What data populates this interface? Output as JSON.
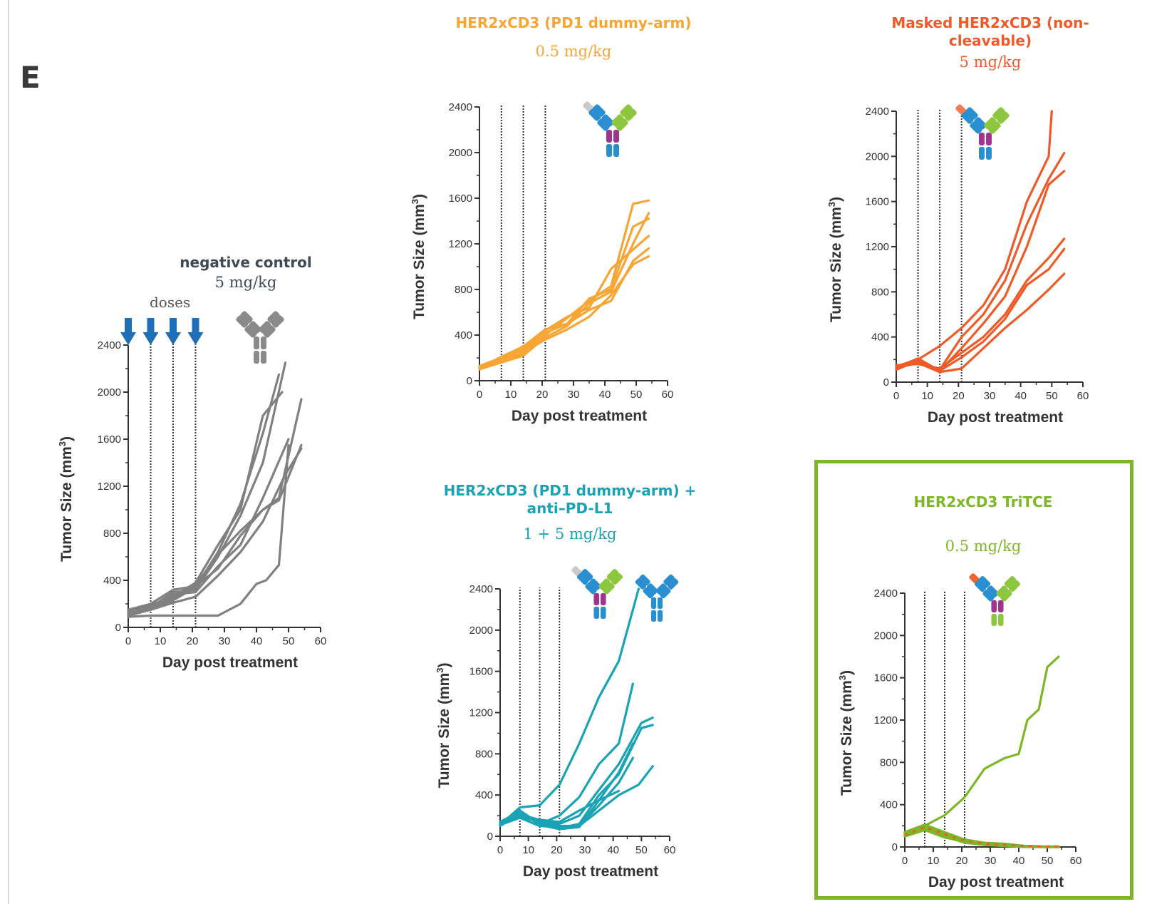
{
  "panel_letter": "E",
  "colors": {
    "grey": "#808080",
    "orange_light": "#f7a535",
    "orange_red": "#ee5a28",
    "teal": "#1aa3b5",
    "green": "#7db728",
    "dose_arrow": "#1f6fb8",
    "axis": "#333333"
  },
  "panels": {
    "negative": {
      "title": "negative control",
      "dose": "5 mg/kg",
      "doses_label": "doses"
    },
    "her2_pd1": {
      "title": "HER2xCD3 (PD1 dummy-arm)",
      "dose": "0.5 mg/kg"
    },
    "masked": {
      "title": "Masked HER2xCD3 (non-cleavable)",
      "dose": "5 mg/kg"
    },
    "combo": {
      "title": "HER2xCD3 (PD1 dummy-arm) + anti–PD-L1",
      "dose": "1 + 5 mg/kg"
    },
    "tritce": {
      "title": "HER2xCD3 TriTCE",
      "dose": "0.5 mg/kg"
    }
  },
  "icons": [
    "antibody-icon",
    "masked-bispecific-icon",
    "bispecific-icon",
    "trispecific-icon"
  ],
  "chart_data": [
    {
      "id": "negative",
      "type": "line",
      "title": "negative control",
      "subtitle": "5 mg/kg",
      "xlabel": "Day post treatment",
      "ylabel": "Tumor Size (mm3)",
      "xlim": [
        0,
        60
      ],
      "ylim": [
        0,
        2400
      ],
      "xticks": [
        0,
        10,
        20,
        30,
        40,
        50,
        60
      ],
      "yticks": [
        0,
        400,
        800,
        1200,
        1600,
        2000,
        2400
      ],
      "dose_days": [
        0,
        7,
        14,
        21
      ],
      "color": "#808080",
      "series": [
        {
          "x": [
            0,
            7,
            14,
            21,
            28,
            35,
            42,
            47
          ],
          "y": [
            120,
            160,
            230,
            340,
            640,
            1050,
            1650,
            2150
          ]
        },
        {
          "x": [
            0,
            7,
            14,
            21,
            28,
            35,
            42,
            49
          ],
          "y": [
            130,
            170,
            300,
            320,
            600,
            950,
            1400,
            2250
          ]
        },
        {
          "x": [
            0,
            7,
            14,
            21,
            28,
            35,
            42,
            48
          ],
          "y": [
            110,
            190,
            260,
            380,
            700,
            1000,
            1800,
            2000
          ]
        },
        {
          "x": [
            0,
            7,
            14,
            21,
            28,
            35,
            42,
            50
          ],
          "y": [
            140,
            180,
            280,
            300,
            520,
            700,
            1100,
            1600
          ]
        },
        {
          "x": [
            0,
            7,
            14,
            21,
            28,
            35,
            42,
            49,
            54
          ],
          "y": [
            100,
            150,
            210,
            260,
            440,
            640,
            900,
            1300,
            1520
          ]
        },
        {
          "x": [
            0,
            7,
            14,
            21,
            28,
            35,
            42,
            47,
            54
          ],
          "y": [
            150,
            200,
            320,
            350,
            500,
            780,
            1000,
            1080,
            1550
          ]
        },
        {
          "x": [
            0,
            7,
            14,
            21,
            28,
            35,
            42,
            47,
            54
          ],
          "y": [
            120,
            170,
            250,
            360,
            620,
            820,
            1000,
            1100,
            1940
          ]
        },
        {
          "x": [
            0,
            7,
            14,
            21,
            28,
            35,
            40,
            43,
            47,
            50
          ],
          "y": [
            90,
            100,
            100,
            100,
            100,
            200,
            370,
            400,
            530,
            1550
          ]
        }
      ]
    },
    {
      "id": "her2_pd1",
      "type": "line",
      "title": "HER2xCD3 (PD1 dummy-arm)",
      "subtitle": "0.5 mg/kg",
      "xlabel": "Day post treatment",
      "ylabel": "Tumor Size (mm3)",
      "xlim": [
        0,
        60
      ],
      "ylim": [
        0,
        2400
      ],
      "xticks": [
        0,
        10,
        20,
        30,
        40,
        50,
        60
      ],
      "yticks": [
        0,
        400,
        800,
        1200,
        1600,
        2000,
        2400
      ],
      "dose_days": [
        7,
        14,
        21
      ],
      "color": "#f7a535",
      "series": [
        {
          "x": [
            0,
            7,
            14,
            21,
            28,
            35,
            42,
            49,
            54
          ],
          "y": [
            110,
            170,
            240,
            400,
            550,
            700,
            830,
            1550,
            1580
          ]
        },
        {
          "x": [
            0,
            7,
            14,
            21,
            28,
            35,
            42,
            49,
            54
          ],
          "y": [
            120,
            190,
            260,
            420,
            500,
            720,
            800,
            1350,
            1420
          ]
        },
        {
          "x": [
            0,
            7,
            14,
            21,
            28,
            35,
            42,
            49,
            54
          ],
          "y": [
            100,
            160,
            220,
            380,
            480,
            680,
            780,
            1200,
            1470
          ]
        },
        {
          "x": [
            0,
            7,
            14,
            21,
            28,
            35,
            42,
            49,
            54
          ],
          "y": [
            130,
            200,
            280,
            440,
            560,
            640,
            980,
            1150,
            1270
          ]
        },
        {
          "x": [
            0,
            7,
            14,
            21,
            28,
            35,
            42,
            49,
            54
          ],
          "y": [
            115,
            210,
            300,
            450,
            500,
            620,
            700,
            1050,
            1160
          ]
        },
        {
          "x": [
            0,
            7,
            14,
            21,
            28,
            35,
            42,
            49,
            54
          ],
          "y": [
            105,
            180,
            250,
            360,
            450,
            560,
            750,
            1020,
            1090
          ]
        }
      ]
    },
    {
      "id": "masked",
      "type": "line",
      "title": "Masked HER2xCD3 (non-cleavable)",
      "subtitle": "5 mg/kg",
      "xlabel": "Day post treatment",
      "ylabel": "Tumor Size (mm3)",
      "xlim": [
        0,
        60
      ],
      "ylim": [
        0,
        2400
      ],
      "xticks": [
        0,
        10,
        20,
        30,
        40,
        50,
        60
      ],
      "yticks": [
        0,
        400,
        800,
        1200,
        1600,
        2000,
        2400
      ],
      "dose_days": [
        7,
        14,
        21
      ],
      "color": "#ee5a28",
      "series": [
        {
          "x": [
            0,
            7,
            14,
            21,
            28,
            35,
            42,
            49,
            50
          ],
          "y": [
            140,
            200,
            320,
            480,
            680,
            1000,
            1600,
            2000,
            2400
          ]
        },
        {
          "x": [
            0,
            7,
            14,
            21,
            28,
            35,
            42,
            49,
            54
          ],
          "y": [
            120,
            180,
            110,
            400,
            600,
            900,
            1400,
            1800,
            2030
          ]
        },
        {
          "x": [
            0,
            7,
            14,
            21,
            28,
            35,
            42,
            49,
            54
          ],
          "y": [
            130,
            210,
            100,
            300,
            520,
            760,
            1200,
            1750,
            1870
          ]
        },
        {
          "x": [
            0,
            7,
            14,
            21,
            28,
            35,
            42,
            49,
            54
          ],
          "y": [
            150,
            160,
            120,
            260,
            400,
            600,
            900,
            1100,
            1270
          ]
        },
        {
          "x": [
            0,
            7,
            14,
            21,
            28,
            35,
            42,
            49,
            54
          ],
          "y": [
            110,
            190,
            100,
            220,
            360,
            560,
            860,
            1000,
            1180
          ]
        },
        {
          "x": [
            0,
            7,
            14,
            21,
            28,
            35,
            42,
            49,
            54
          ],
          "y": [
            125,
            170,
            90,
            120,
            300,
            480,
            640,
            820,
            960
          ]
        }
      ]
    },
    {
      "id": "combo",
      "type": "line",
      "title": "HER2xCD3 (PD1 dummy-arm) + anti–PD-L1",
      "subtitle": "1 + 5 mg/kg",
      "xlabel": "Day post treatment",
      "ylabel": "Tumor Size (mm3)",
      "xlim": [
        0,
        60
      ],
      "ylim": [
        0,
        2400
      ],
      "xticks": [
        0,
        10,
        20,
        30,
        40,
        50,
        60
      ],
      "yticks": [
        0,
        400,
        800,
        1200,
        1600,
        2000,
        2400
      ],
      "dose_days": [
        7,
        14,
        21
      ],
      "color": "#1aa3b5",
      "series": [
        {
          "x": [
            0,
            7,
            14,
            21,
            28,
            35,
            42,
            49
          ],
          "y": [
            110,
            280,
            300,
            500,
            900,
            1350,
            1700,
            2400
          ]
        },
        {
          "x": [
            0,
            7,
            14,
            21,
            28,
            35,
            42,
            47
          ],
          "y": [
            130,
            250,
            120,
            200,
            380,
            700,
            900,
            1480
          ]
        },
        {
          "x": [
            0,
            7,
            14,
            21,
            28,
            35,
            42,
            50,
            54
          ],
          "y": [
            120,
            200,
            150,
            120,
            200,
            450,
            700,
            1100,
            1150
          ]
        },
        {
          "x": [
            0,
            7,
            14,
            21,
            28,
            35,
            42,
            50,
            54
          ],
          "y": [
            100,
            220,
            130,
            80,
            120,
            400,
            600,
            1050,
            1080
          ]
        },
        {
          "x": [
            0,
            7,
            14,
            21,
            28,
            35,
            42,
            47
          ],
          "y": [
            140,
            240,
            110,
            70,
            90,
            350,
            620,
            900
          ]
        },
        {
          "x": [
            0,
            7,
            14,
            21,
            28,
            35,
            42,
            47
          ],
          "y": [
            110,
            180,
            100,
            90,
            100,
            300,
            520,
            760
          ]
        },
        {
          "x": [
            0,
            7,
            14,
            21,
            28,
            35,
            42
          ],
          "y": [
            125,
            210,
            160,
            140,
            250,
            350,
            440
          ]
        },
        {
          "x": [
            0,
            7,
            14,
            21,
            28,
            35,
            42,
            49,
            54
          ],
          "y": [
            115,
            190,
            140,
            100,
            100,
            250,
            400,
            500,
            680
          ]
        }
      ]
    },
    {
      "id": "tritce",
      "type": "line",
      "title": "HER2xCD3 TriTCE",
      "subtitle": "0.5 mg/kg",
      "xlabel": "Day post treatment",
      "ylabel": "Tumor Size (mm3)",
      "xlim": [
        0,
        60
      ],
      "ylim": [
        0,
        2400
      ],
      "xticks": [
        0,
        10,
        20,
        30,
        40,
        50,
        60
      ],
      "yticks": [
        0,
        400,
        800,
        1200,
        1600,
        2000,
        2400
      ],
      "dose_days": [
        7,
        14,
        21
      ],
      "color": "#7db728",
      "series": [
        {
          "x": [
            0,
            7,
            14,
            21,
            28,
            35,
            40,
            43,
            47,
            50,
            54
          ],
          "y": [
            120,
            200,
            300,
            470,
            740,
            840,
            880,
            1200,
            1300,
            1700,
            1800
          ]
        },
        {
          "x": [
            0,
            7,
            14,
            21,
            28,
            35,
            42,
            49,
            54
          ],
          "y": [
            110,
            190,
            120,
            60,
            30,
            20,
            10,
            5,
            5
          ]
        },
        {
          "x": [
            0,
            7,
            14,
            21,
            28,
            35,
            42,
            49,
            54
          ],
          "y": [
            130,
            170,
            100,
            40,
            20,
            10,
            5,
            0,
            0
          ]
        },
        {
          "x": [
            0,
            7,
            14,
            21,
            28,
            35,
            42,
            49,
            54
          ],
          "y": [
            100,
            160,
            90,
            50,
            25,
            15,
            5,
            0,
            0
          ]
        },
        {
          "x": [
            0,
            7,
            14,
            21,
            28,
            35,
            42,
            49,
            54
          ],
          "y": [
            140,
            210,
            140,
            70,
            40,
            30,
            10,
            5,
            0
          ]
        },
        {
          "x": [
            0,
            7,
            14,
            21,
            28,
            35,
            42,
            49,
            54
          ],
          "y": [
            120,
            180,
            110,
            45,
            20,
            10,
            0,
            0,
            0
          ]
        }
      ]
    }
  ]
}
